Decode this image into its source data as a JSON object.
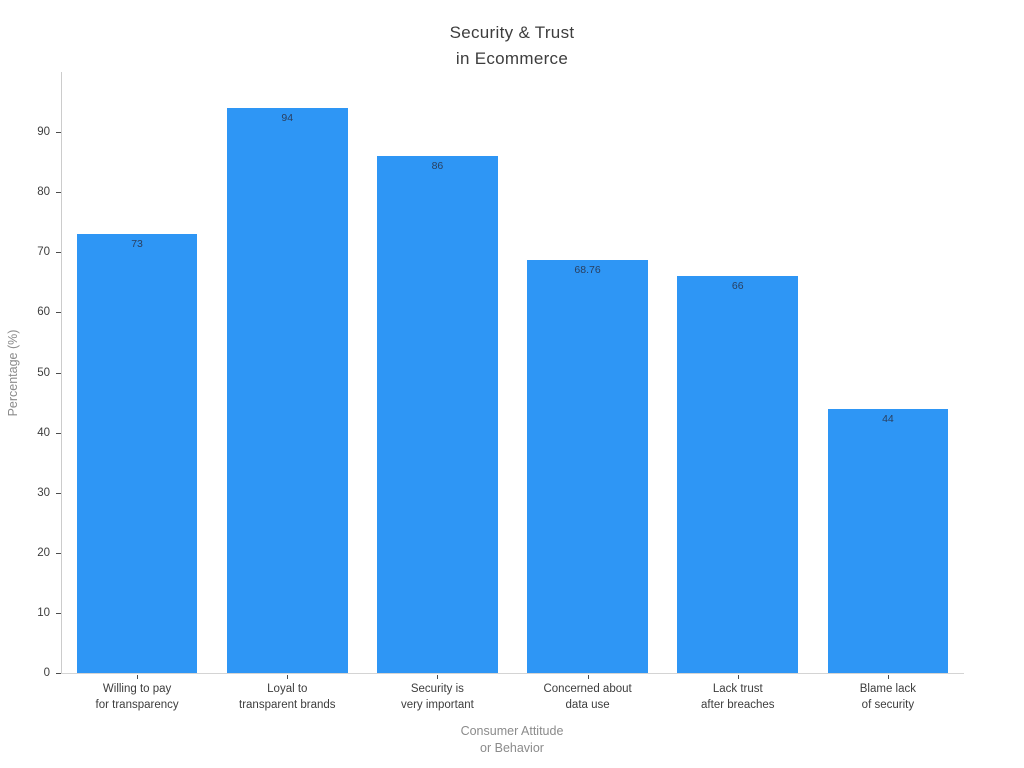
{
  "title_lines": [
    "Security & Trust",
    "in Ecommerce"
  ],
  "chart_data": {
    "type": "bar",
    "title": "Security & Trust in Ecommerce",
    "categories": [
      [
        "Willing to pay",
        "for transparency"
      ],
      [
        "Loyal to",
        "transparent brands"
      ],
      [
        "Security is",
        "very important"
      ],
      [
        "Concerned about",
        "data use"
      ],
      [
        "Lack trust",
        "after breaches"
      ],
      [
        "Blame lack",
        "of security"
      ]
    ],
    "values": [
      73,
      94,
      86,
      68.76,
      66,
      44
    ],
    "value_labels": [
      "73",
      "94",
      "86",
      "68.76",
      "66",
      "44"
    ],
    "xlabel_lines": [
      "Consumer Attitude",
      "or Behavior"
    ],
    "xlabel": "Consumer Attitude or Behavior",
    "ylabel": "Percentage (%)",
    "ylim": [
      0,
      100
    ],
    "yticks": [
      0,
      10,
      20,
      30,
      40,
      50,
      60,
      70,
      80,
      90
    ],
    "bar_color": "#2e96f5",
    "grid": false,
    "legend": false
  }
}
